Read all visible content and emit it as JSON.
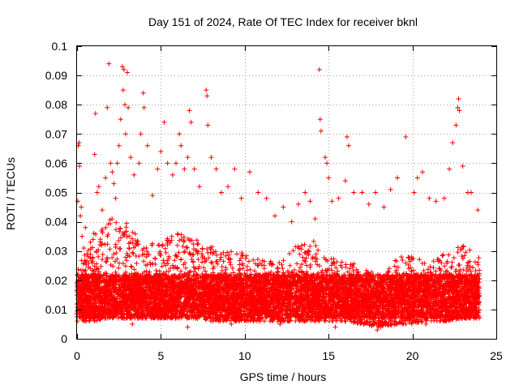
{
  "chart_data": {
    "type": "scatter",
    "title": "Day 151 of 2024, Rate Of TEC Index for receiver bknl",
    "xlabel": "GPS time / hours",
    "ylabel": "ROTI / TECUs",
    "xlim": [
      0,
      25
    ],
    "ylim": [
      0,
      0.1
    ],
    "x_ticks": [
      0,
      5,
      10,
      15,
      20,
      25
    ],
    "x_tick_labels": [
      "0",
      "5",
      "10",
      "15",
      "20",
      "25"
    ],
    "y_ticks": [
      0,
      0.01,
      0.02,
      0.03,
      0.04,
      0.05,
      0.06,
      0.07,
      0.08,
      0.09,
      0.1
    ],
    "y_tick_labels": [
      "0",
      "0.01",
      "0.02",
      "0.03",
      "0.04",
      "0.05",
      "0.06",
      "0.07",
      "0.08",
      "0.09",
      "0.1"
    ],
    "grid": true,
    "marker": "plus",
    "color": "#ff0000",
    "series": [
      {
        "name": "ROTI",
        "points": [
          [
            0.05,
            0.047
          ],
          [
            0.08,
            0.066
          ],
          [
            0.12,
            0.067
          ],
          [
            0.15,
            0.059
          ],
          [
            0.2,
            0.042
          ],
          [
            0.25,
            0.045
          ],
          [
            0.3,
            0.035
          ],
          [
            0.4,
            0.031
          ],
          [
            0.5,
            0.038
          ],
          [
            0.6,
            0.029
          ],
          [
            0.8,
            0.033
          ],
          [
            1.0,
            0.036
          ],
          [
            1.05,
            0.063
          ],
          [
            1.1,
            0.077
          ],
          [
            1.2,
            0.05
          ],
          [
            1.3,
            0.052
          ],
          [
            1.5,
            0.044
          ],
          [
            1.7,
            0.055
          ],
          [
            1.8,
            0.079
          ],
          [
            1.9,
            0.094
          ],
          [
            2.0,
            0.06
          ],
          [
            2.1,
            0.057
          ],
          [
            2.2,
            0.053
          ],
          [
            2.3,
            0.048
          ],
          [
            2.4,
            0.06
          ],
          [
            2.5,
            0.066
          ],
          [
            2.6,
            0.075
          ],
          [
            2.7,
            0.093
          ],
          [
            2.75,
            0.085
          ],
          [
            2.8,
            0.092
          ],
          [
            2.85,
            0.08
          ],
          [
            2.9,
            0.07
          ],
          [
            3.0,
            0.091
          ],
          [
            3.05,
            0.079
          ],
          [
            3.2,
            0.062
          ],
          [
            3.4,
            0.056
          ],
          [
            3.7,
            0.06
          ],
          [
            3.8,
            0.07
          ],
          [
            3.95,
            0.084
          ],
          [
            4.0,
            0.079
          ],
          [
            4.2,
            0.066
          ],
          [
            4.5,
            0.049
          ],
          [
            4.8,
            0.058
          ],
          [
            5.0,
            0.064
          ],
          [
            5.2,
            0.074
          ],
          [
            5.4,
            0.06
          ],
          [
            5.7,
            0.056
          ],
          [
            5.9,
            0.06
          ],
          [
            6.1,
            0.07
          ],
          [
            6.2,
            0.066
          ],
          [
            6.4,
            0.058
          ],
          [
            6.6,
            0.062
          ],
          [
            6.7,
            0.078
          ],
          [
            6.8,
            0.074
          ],
          [
            7.0,
            0.058
          ],
          [
            7.3,
            0.052
          ],
          [
            7.7,
            0.085
          ],
          [
            7.75,
            0.083
          ],
          [
            7.8,
            0.073
          ],
          [
            8.0,
            0.062
          ],
          [
            8.3,
            0.058
          ],
          [
            8.6,
            0.05
          ],
          [
            9.0,
            0.052
          ],
          [
            9.4,
            0.058
          ],
          [
            9.8,
            0.048
          ],
          [
            10.3,
            0.057
          ],
          [
            10.8,
            0.05
          ],
          [
            11.3,
            0.048
          ],
          [
            11.8,
            0.042
          ],
          [
            12.3,
            0.045
          ],
          [
            12.8,
            0.04
          ],
          [
            13.2,
            0.046
          ],
          [
            13.6,
            0.05
          ],
          [
            13.9,
            0.047
          ],
          [
            14.2,
            0.041
          ],
          [
            14.45,
            0.092
          ],
          [
            14.5,
            0.075
          ],
          [
            14.55,
            0.071
          ],
          [
            14.8,
            0.062
          ],
          [
            14.9,
            0.06
          ],
          [
            15.0,
            0.055
          ],
          [
            15.2,
            0.047
          ],
          [
            15.6,
            0.048
          ],
          [
            16.0,
            0.054
          ],
          [
            16.1,
            0.069
          ],
          [
            16.2,
            0.066
          ],
          [
            16.5,
            0.05
          ],
          [
            17.0,
            0.05
          ],
          [
            17.4,
            0.046
          ],
          [
            17.8,
            0.05
          ],
          [
            18.3,
            0.045
          ],
          [
            18.7,
            0.051
          ],
          [
            19.1,
            0.055
          ],
          [
            19.6,
            0.069
          ],
          [
            20.1,
            0.05
          ],
          [
            20.3,
            0.055
          ],
          [
            20.6,
            0.057
          ],
          [
            21.0,
            0.048
          ],
          [
            21.4,
            0.047
          ],
          [
            21.9,
            0.048
          ],
          [
            22.2,
            0.058
          ],
          [
            22.4,
            0.067
          ],
          [
            22.6,
            0.073
          ],
          [
            22.7,
            0.079
          ],
          [
            22.75,
            0.082
          ],
          [
            22.8,
            0.078
          ],
          [
            23.0,
            0.059
          ],
          [
            23.3,
            0.05
          ],
          [
            23.5,
            0.05
          ],
          [
            23.9,
            0.044
          ],
          [
            17.9,
            0.003
          ],
          [
            18.1,
            0.004
          ],
          [
            9.2,
            0.005
          ],
          [
            12.1,
            0.005
          ],
          [
            15.4,
            0.004
          ],
          [
            3.3,
            0.005
          ],
          [
            20.8,
            0.005
          ],
          [
            6.6,
            0.004
          ]
        ]
      }
    ],
    "dense_band": {
      "description": "Continuous dense cloud of points from 0 to 24 h",
      "hourly_profile": [
        {
          "h": 0,
          "lo": 0.006,
          "hi": 0.024
        },
        {
          "h": 1,
          "lo": 0.006,
          "hi": 0.035
        },
        {
          "h": 2,
          "lo": 0.007,
          "hi": 0.042
        },
        {
          "h": 3,
          "lo": 0.007,
          "hi": 0.04
        },
        {
          "h": 4,
          "lo": 0.007,
          "hi": 0.032
        },
        {
          "h": 5,
          "lo": 0.007,
          "hi": 0.034
        },
        {
          "h": 6,
          "lo": 0.007,
          "hi": 0.036
        },
        {
          "h": 7,
          "lo": 0.007,
          "hi": 0.034
        },
        {
          "h": 8,
          "lo": 0.006,
          "hi": 0.032
        },
        {
          "h": 9,
          "lo": 0.006,
          "hi": 0.03
        },
        {
          "h": 10,
          "lo": 0.006,
          "hi": 0.03
        },
        {
          "h": 11,
          "lo": 0.006,
          "hi": 0.027
        },
        {
          "h": 12,
          "lo": 0.006,
          "hi": 0.026
        },
        {
          "h": 13,
          "lo": 0.006,
          "hi": 0.032
        },
        {
          "h": 14,
          "lo": 0.006,
          "hi": 0.035
        },
        {
          "h": 15,
          "lo": 0.006,
          "hi": 0.028
        },
        {
          "h": 16,
          "lo": 0.006,
          "hi": 0.028
        },
        {
          "h": 17,
          "lo": 0.005,
          "hi": 0.024
        },
        {
          "h": 18,
          "lo": 0.004,
          "hi": 0.022
        },
        {
          "h": 19,
          "lo": 0.005,
          "hi": 0.028
        },
        {
          "h": 20,
          "lo": 0.005,
          "hi": 0.028
        },
        {
          "h": 21,
          "lo": 0.006,
          "hi": 0.026
        },
        {
          "h": 22,
          "lo": 0.006,
          "hi": 0.03
        },
        {
          "h": 23,
          "lo": 0.007,
          "hi": 0.032
        },
        {
          "h": 24,
          "lo": 0.007,
          "hi": 0.028
        }
      ],
      "x_range": [
        0,
        24
      ]
    }
  }
}
